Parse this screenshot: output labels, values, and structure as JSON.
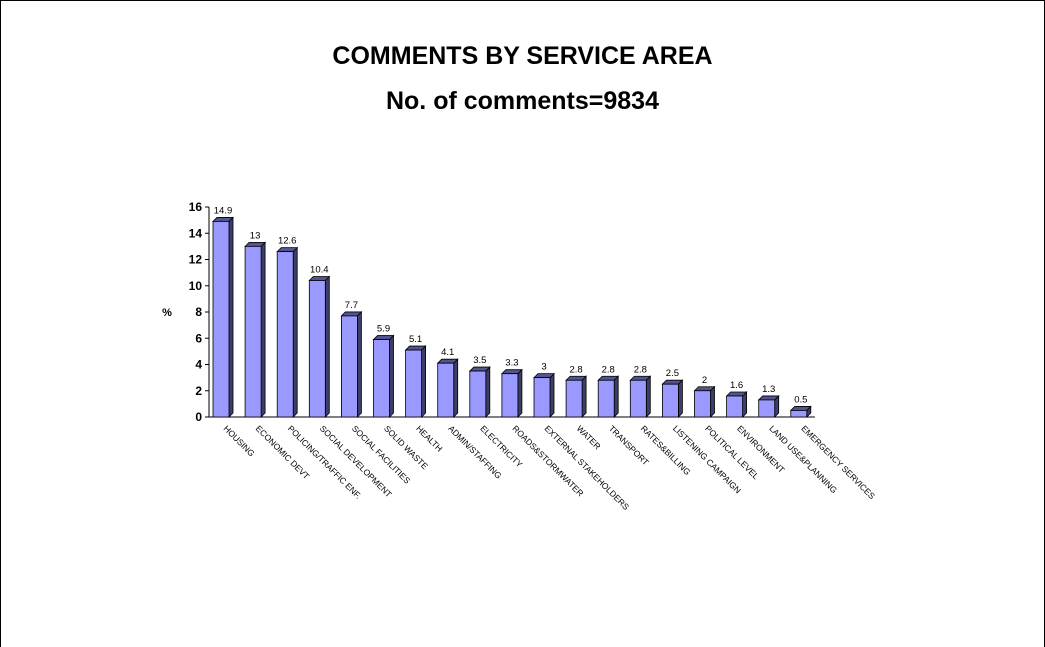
{
  "chart_data": {
    "type": "bar",
    "title": "COMMENTS BY SERVICE AREA",
    "subtitle": "No. of comments=9834",
    "ylabel": "%",
    "xlabel": "",
    "ylim": [
      0,
      16
    ],
    "yticks": [
      "0",
      "2",
      "4",
      "6",
      "8",
      "10",
      "12",
      "14",
      "16"
    ],
    "grid": false,
    "legend": "none",
    "bar_color": "#9999ff",
    "categories": [
      "HOUSING",
      "ECONOMIC DEVT",
      "POLICING/TRAFFIC ENF.",
      "SOCIAL DEVELOPMENT",
      "SOCIAL FACILITIES",
      "SOLID WASTE",
      "HEALTH",
      "ADMIN/STAFFING",
      "ELECTRICITY",
      "ROADS&STORMWATER",
      "EXTERNAL STAKEHOLDERS",
      "WATER",
      "TRANSPORT",
      "RATES&BILLING",
      "LISTENING CAMPAIGN",
      "POLITICAL LEVEL",
      "ENVIRONMENT",
      "LAND USE&PLANNING",
      "EMERGENCY SERVICES"
    ],
    "values": [
      14.9,
      13,
      12.6,
      10.4,
      7.7,
      5.9,
      5.1,
      4.1,
      3.5,
      3.3,
      3,
      2.8,
      2.8,
      2.8,
      2.5,
      2,
      1.6,
      1.3,
      0.5
    ],
    "data_labels": [
      "14.9",
      "13",
      "12.6",
      "10.4",
      "7.7",
      "5.9",
      "5.1",
      "4.1",
      "3.5",
      "3.3",
      "3",
      "2.8",
      "2.8",
      "2.8",
      "2.5",
      "2",
      "1.6",
      "1.3",
      "0.5"
    ]
  }
}
